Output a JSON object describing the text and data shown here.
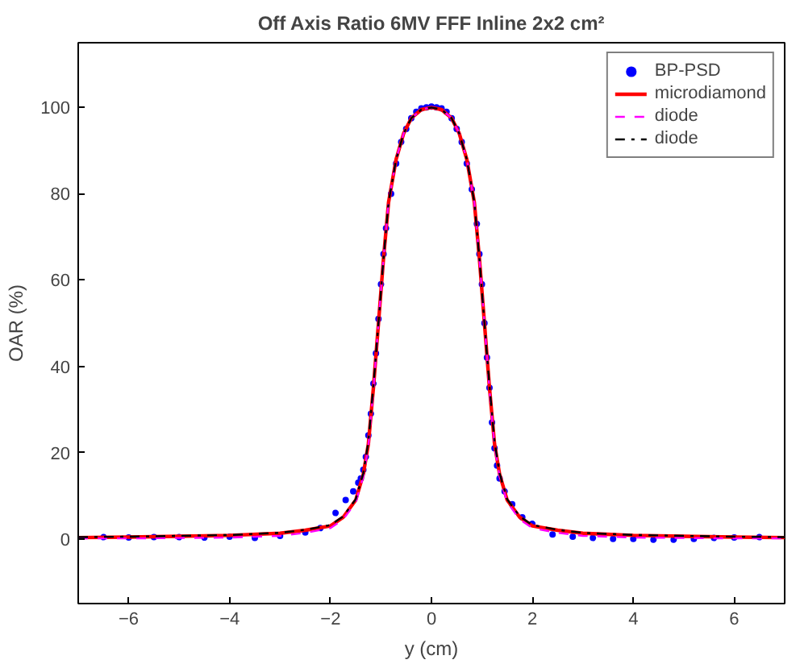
{
  "chart_data": {
    "type": "line",
    "title": "Off Axis Ratio 6MV FFF Inline 2x2 cm²",
    "xlabel": "y (cm)",
    "ylabel": "OAR (%)",
    "xlim": [
      -7,
      7
    ],
    "ylim": [
      -15,
      115
    ],
    "xticks": [
      -6,
      -4,
      -2,
      0,
      2,
      4,
      6
    ],
    "yticks": [
      0,
      20,
      40,
      60,
      80,
      100
    ],
    "grid": false,
    "legend": "top right",
    "series": [
      {
        "name": "BP-PSD",
        "type": "scatter",
        "marker": "circle",
        "color": "#0000ff",
        "x": [
          -6.5,
          -6,
          -5.5,
          -5,
          -4.5,
          -4,
          -3.5,
          -3,
          -2.5,
          -2.2,
          -1.9,
          -1.7,
          -1.55,
          -1.45,
          -1.4,
          -1.35,
          -1.3,
          -1.25,
          -1.2,
          -1.15,
          -1.1,
          -1.05,
          -1.0,
          -0.95,
          -0.9,
          -0.8,
          -0.7,
          -0.6,
          -0.5,
          -0.4,
          -0.3,
          -0.2,
          -0.1,
          0,
          0.1,
          0.2,
          0.3,
          0.4,
          0.5,
          0.6,
          0.7,
          0.8,
          0.9,
          0.95,
          1.0,
          1.05,
          1.1,
          1.15,
          1.2,
          1.25,
          1.3,
          1.35,
          1.45,
          1.6,
          1.8,
          2.0,
          2.4,
          2.8,
          3.2,
          3.6,
          4.0,
          4.4,
          4.8,
          5.2,
          5.6,
          6.0,
          6.5
        ],
        "values": [
          0.4,
          0.3,
          0.4,
          0.4,
          0.3,
          0.5,
          0.2,
          0.7,
          1.5,
          2.5,
          6,
          9,
          11,
          13,
          14,
          16,
          19,
          24,
          29,
          36,
          43,
          51,
          59,
          66,
          72,
          80,
          87,
          92,
          95,
          97.5,
          99,
          99.8,
          100,
          100.2,
          100,
          99.8,
          99,
          97.5,
          95,
          92,
          87,
          81,
          73,
          66,
          59,
          50,
          42,
          35,
          27,
          21,
          17,
          14,
          11,
          8,
          5,
          3.5,
          1,
          0.5,
          0.2,
          0,
          0,
          -0.2,
          -0.2,
          0,
          0.2,
          0.3,
          0.4
        ]
      },
      {
        "name": "microdiamond",
        "color": "#ff0000",
        "line_style": "solid",
        "x": [
          -7,
          -6,
          -5,
          -4,
          -3,
          -2.5,
          -2,
          -1.75,
          -1.5,
          -1.35,
          -1.25,
          -1.15,
          -1.05,
          -0.95,
          -0.85,
          -0.7,
          -0.55,
          -0.4,
          -0.2,
          0,
          0.2,
          0.4,
          0.55,
          0.7,
          0.85,
          0.95,
          1.05,
          1.15,
          1.25,
          1.35,
          1.5,
          1.75,
          2,
          2.5,
          3,
          4,
          5,
          6,
          7
        ],
        "values": [
          0.3,
          0.4,
          0.6,
          0.8,
          1.3,
          2,
          3,
          5,
          9,
          15,
          22,
          35,
          50,
          65,
          78,
          88,
          94,
          97.5,
          99.5,
          100,
          99.5,
          97.5,
          94,
          88,
          78,
          65,
          50,
          35,
          22,
          15,
          9,
          5,
          3,
          2,
          1.3,
          0.8,
          0.6,
          0.4,
          0.3
        ]
      },
      {
        "name": "diode",
        "color": "#ff00ff",
        "line_style": "dashed",
        "x": [
          -7,
          -6,
          -5,
          -4,
          -3,
          -2.5,
          -2,
          -1.75,
          -1.5,
          -1.35,
          -1.25,
          -1.15,
          -1.05,
          -0.95,
          -0.85,
          -0.7,
          -0.55,
          -0.4,
          -0.2,
          0,
          0.2,
          0.4,
          0.55,
          0.7,
          0.85,
          0.95,
          1.05,
          1.15,
          1.25,
          1.35,
          1.5,
          1.75,
          2,
          2.5,
          3,
          4,
          5,
          6,
          7
        ],
        "values": [
          0.1,
          0.1,
          0.2,
          0.3,
          0.7,
          1.4,
          2.5,
          4.5,
          8.5,
          14.5,
          21.5,
          34.5,
          50,
          65,
          78,
          88,
          94,
          97.5,
          99.5,
          100,
          99.5,
          97.5,
          94,
          88,
          78,
          65,
          50,
          34.5,
          21.5,
          14.5,
          8.5,
          4.5,
          2.5,
          1.4,
          0.7,
          0.3,
          0.2,
          0.1,
          0.1
        ]
      },
      {
        "name": "diode",
        "color": "#000000",
        "line_style": "dashdot",
        "x": [
          -7,
          -6,
          -5,
          -4,
          -3,
          -2.5,
          -2,
          -1.75,
          -1.5,
          -1.35,
          -1.25,
          -1.15,
          -1.05,
          -0.95,
          -0.85,
          -0.7,
          -0.55,
          -0.4,
          -0.2,
          0,
          0.2,
          0.4,
          0.55,
          0.7,
          0.85,
          0.95,
          1.05,
          1.15,
          1.25,
          1.35,
          1.5,
          1.75,
          2,
          2.5,
          3,
          4,
          5,
          6,
          7
        ],
        "values": [
          0.4,
          0.5,
          0.7,
          0.9,
          1.4,
          2.1,
          3.2,
          5.2,
          9.2,
          15.2,
          22.5,
          35.5,
          50,
          65,
          78,
          88,
          94,
          97.5,
          99.5,
          100,
          99.5,
          97.5,
          94,
          88,
          78,
          65,
          50,
          35.5,
          22.5,
          15.2,
          9.2,
          5.2,
          3.2,
          2.1,
          1.4,
          0.9,
          0.7,
          0.5,
          0.4
        ]
      }
    ]
  }
}
